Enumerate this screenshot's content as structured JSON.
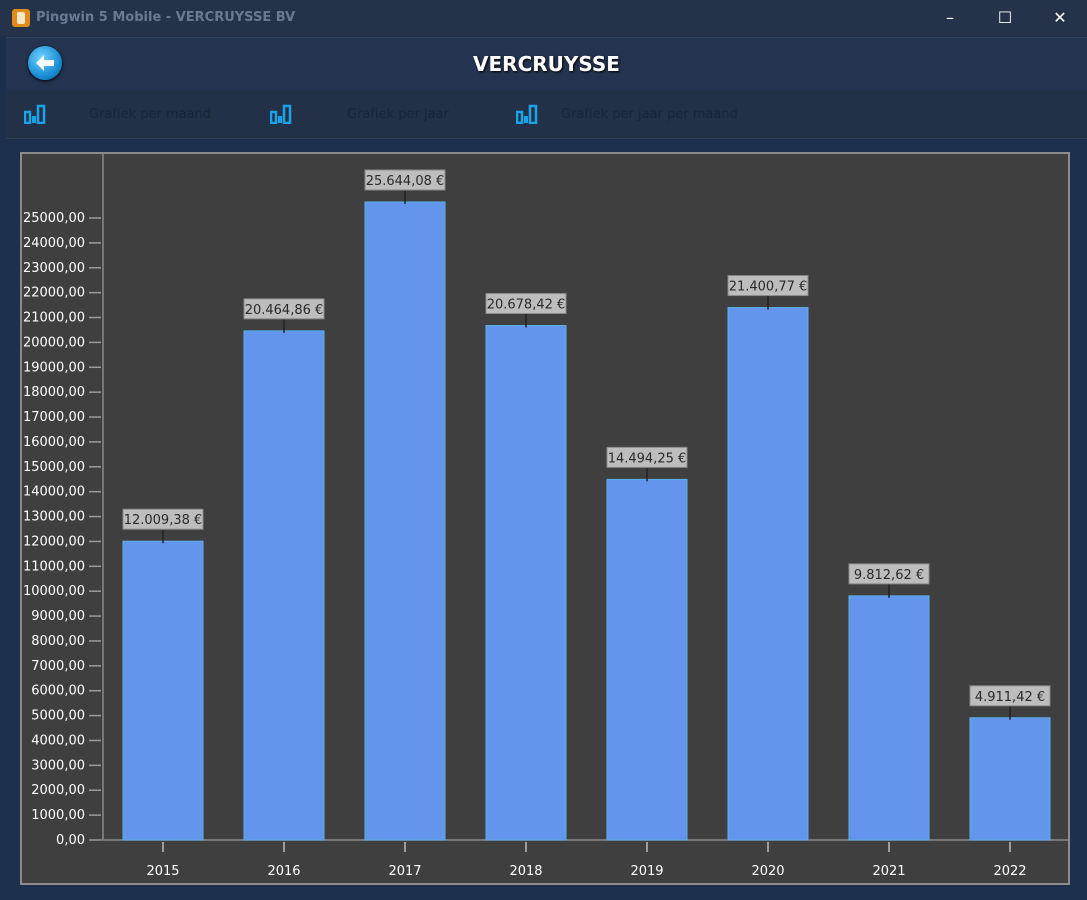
{
  "window": {
    "title": "Pingwin 5 Mobile - VERCRUYSSE BV",
    "minimize_icon": "minimize-icon",
    "maximize_icon": "maximize-icon",
    "close_icon": "close-icon",
    "minimize_glyph": "–",
    "maximize_glyph": "☐",
    "close_glyph": "✕"
  },
  "header": {
    "title": "VERCRUYSSE",
    "back_icon": "arrow-left-icon"
  },
  "toolbar": {
    "items": [
      {
        "label": "Grafiek per maand",
        "icon": "bar-chart-icon"
      },
      {
        "label": "Grafiek per jaar",
        "icon": "bar-chart-icon"
      },
      {
        "label": "Grafiek per jaar per maand",
        "icon": "bar-chart-icon"
      }
    ]
  },
  "colors": {
    "bar": "#6495ed",
    "bar_border": "#5ab0e8",
    "plot_bg": "#3f3f3f",
    "label_bg": "#bdbdbd",
    "icon": "#1aa3e8"
  },
  "chart_data": {
    "type": "bar",
    "title": "",
    "xlabel": "",
    "ylabel": "",
    "categories": [
      "2015",
      "2016",
      "2017",
      "2018",
      "2019",
      "2020",
      "2021",
      "2022"
    ],
    "values": [
      12009.38,
      20464.86,
      25644.08,
      20678.42,
      14494.25,
      21400.77,
      9812.62,
      4911.42
    ],
    "data_labels": [
      "12.009,38 €",
      "20.464,86 €",
      "25.644,08 €",
      "20.678,42 €",
      "14.494,25 €",
      "21.400,77 €",
      "9.812,62 €",
      "4.911,42 €"
    ],
    "ylim": [
      0,
      27000
    ],
    "yticks": [
      0,
      1000,
      2000,
      3000,
      4000,
      5000,
      6000,
      7000,
      8000,
      9000,
      10000,
      11000,
      12000,
      13000,
      14000,
      15000,
      16000,
      17000,
      18000,
      19000,
      20000,
      21000,
      22000,
      23000,
      24000,
      25000
    ],
    "ytick_labels": [
      "0,00",
      "1000,00",
      "2000,00",
      "3000,00",
      "4000,00",
      "5000,00",
      "6000,00",
      "7000,00",
      "8000,00",
      "9000,00",
      "10000,00",
      "11000,00",
      "12000,00",
      "13000,00",
      "14000,00",
      "15000,00",
      "16000,00",
      "17000,00",
      "18000,00",
      "19000,00",
      "20000,00",
      "21000,00",
      "22000,00",
      "23000,00",
      "24000,00",
      "25000,00"
    ],
    "grid": false,
    "legend": "none"
  }
}
